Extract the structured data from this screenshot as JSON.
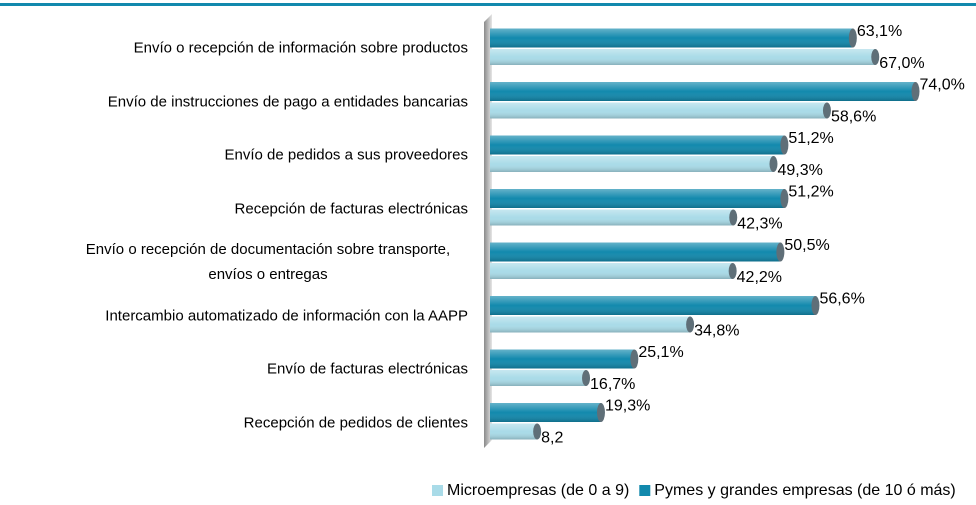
{
  "chart_data": {
    "type": "bar",
    "orientation": "horizontal",
    "categories": [
      "Envío o recepción de información sobre productos",
      "Envío de instrucciones de pago a entidades bancarias",
      "Envío de pedidos a sus proveedores",
      "Recepción de facturas electrónicas",
      "Envío o recepción de documentación sobre transporte, envíos o entregas",
      "Intercambio automatizado de información con la AAPP",
      "Envío de facturas electrónicas",
      "Recepción de pedidos de clientes"
    ],
    "series": [
      {
        "name": "Microempresas (de 0 a 9)",
        "color": "#a9dbe8",
        "values": [
          67.0,
          58.6,
          49.3,
          42.3,
          42.2,
          34.8,
          16.7,
          8.2
        ],
        "value_labels": [
          "67,0%",
          "58,6%",
          "49,3%",
          "42,3%",
          "42,2%",
          "34,8%",
          "16,7%",
          "8,2"
        ]
      },
      {
        "name": "Pymes y grandes empresas (de 10 ó más)",
        "color": "#1289ad",
        "values": [
          63.1,
          74.0,
          51.2,
          51.2,
          50.5,
          56.6,
          25.1,
          19.3
        ],
        "value_labels": [
          "63,1%",
          "74,0%",
          "51,2%",
          "51,2%",
          "50,5%",
          "56,6%",
          "25,1%",
          "19,3%"
        ]
      }
    ]
  }
}
